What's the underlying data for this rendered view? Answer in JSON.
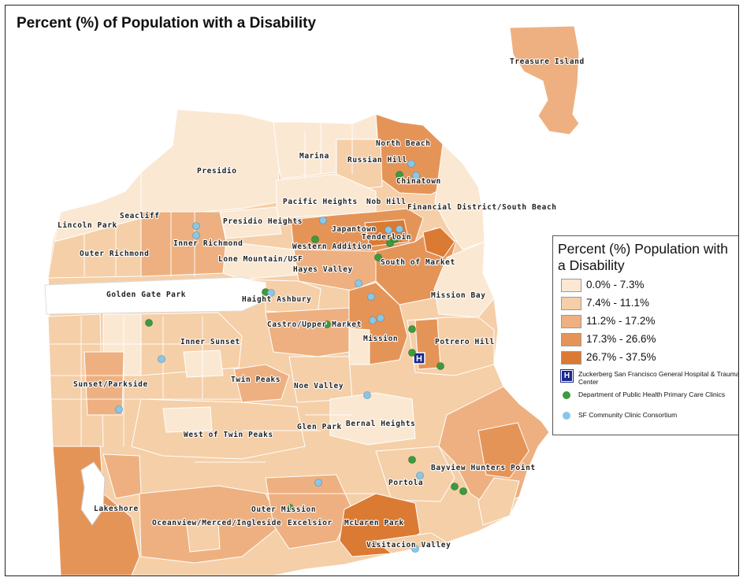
{
  "title": "Percent (%) of Population with a Disability",
  "legend": {
    "title": "Percent (%) Population with a Disability",
    "classes": [
      {
        "label": "0.0% - 7.3%",
        "color": "#fbe8d3"
      },
      {
        "label": "7.4% - 11.1%",
        "color": "#f5cfa8"
      },
      {
        "label": "11.2% - 17.2%",
        "color": "#eeb080"
      },
      {
        "label": "17.3% - 26.6%",
        "color": "#e59458"
      },
      {
        "label": "26.7% - 37.5%",
        "color": "#db7a33"
      }
    ],
    "hospital": {
      "symbol": "H",
      "label": "Zuckerberg San Francisco General Hospital & Trauma Center",
      "color": "#1b2a8c"
    },
    "dph": {
      "label": "Department of Public Health Primary Care Clinics",
      "color": "#3e9a3e"
    },
    "sfccc": {
      "label": "SF Community Clinic Consortium",
      "color": "#89c7e6"
    }
  },
  "neighborhoods": {
    "treasure_island": "Treasure Island",
    "north_beach": "North Beach",
    "marina": "Marina",
    "russian_hill": "Russian Hill",
    "presidio": "Presidio",
    "chinatown": "Chinatown",
    "pacific_heights": "Pacific Heights",
    "nob_hill": "Nob Hill",
    "financial_district": "Financial District/South Beach",
    "seacliff": "Seacliff",
    "lincoln_park": "Lincoln Park",
    "presidio_heights": "Presidio Heights",
    "japantown": "Japantown",
    "tenderloin": "Tenderloin",
    "inner_richmond": "Inner Richmond",
    "western_addition": "Western Addition",
    "outer_richmond": "Outer Richmond",
    "lone_mountain": "Lone Mountain/USF",
    "south_of_market": "South of Market",
    "hayes_valley": "Hayes Valley",
    "golden_gate_park": "Golden Gate Park",
    "haight_ashbury": "Haight Ashbury",
    "mission_bay": "Mission Bay",
    "castro": "Castro/Upper Market",
    "inner_sunset": "Inner Sunset",
    "mission": "Mission",
    "potrero_hill": "Potrero Hill",
    "twin_peaks": "Twin Peaks",
    "sunset_parkside": "Sunset/Parkside",
    "noe_valley": "Noe Valley",
    "glen_park": "Glen Park",
    "bernal_heights": "Bernal Heights",
    "west_of_twin_peaks": "West of Twin Peaks",
    "bayview": "Bayview Hunters Point",
    "portola": "Portola",
    "lakeshore": "Lakeshore",
    "outer_mission": "Outer Mission",
    "oceanview": "Oceanview/Merced/Ingleside",
    "excelsior": "Excelsior",
    "mclaren_park": "McLaren Park",
    "visitacion_valley": "Visitacion Valley"
  },
  "hospital_marker": "H"
}
